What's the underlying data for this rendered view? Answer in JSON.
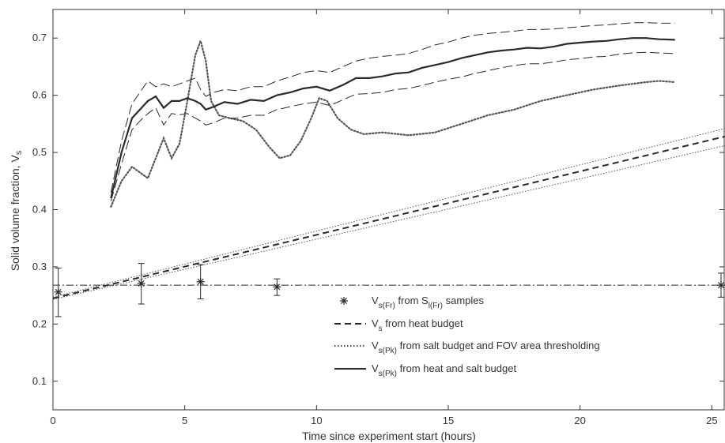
{
  "chart_data": {
    "type": "line",
    "xlabel": "Time since experiment start (hours)",
    "ylabel": "Solid volume fraction, V",
    "ylabel_sub": "s",
    "xlim": [
      0,
      25.5
    ],
    "ylim": [
      0.05,
      0.75
    ],
    "x_ticks": [
      0,
      5,
      10,
      15,
      20,
      25
    ],
    "y_ticks": [
      0.1,
      0.2,
      0.3,
      0.4,
      0.5,
      0.6,
      0.7
    ],
    "grid": false,
    "legend_position": "lower-right",
    "horizontal_line": {
      "y": 0.268,
      "style": "dash-dot"
    },
    "series": [
      {
        "key": "fr_samples",
        "kind": "scatter-errorbar",
        "marker": "asterisk",
        "points": [
          {
            "x": 0.2,
            "y": 0.256,
            "lo": 0.213,
            "hi": 0.298
          },
          {
            "x": 3.35,
            "y": 0.271,
            "lo": 0.235,
            "hi": 0.306
          },
          {
            "x": 5.6,
            "y": 0.274,
            "lo": 0.244,
            "hi": 0.304
          },
          {
            "x": 8.5,
            "y": 0.265,
            "lo": 0.25,
            "hi": 0.279
          },
          {
            "x": 25.35,
            "y": 0.268,
            "lo": 0.247,
            "hi": 0.289
          }
        ]
      },
      {
        "key": "heat_budget",
        "kind": "line",
        "style": "dashed",
        "x": [
          0,
          25.5
        ],
        "y": [
          0.245,
          0.528
        ],
        "envelope_upper": [
          0.247,
          0.542
        ],
        "envelope_lower": [
          0.243,
          0.512
        ]
      },
      {
        "key": "salt_fov",
        "kind": "line",
        "style": "dotted",
        "x": [
          2.2,
          2.6,
          3.0,
          3.3,
          3.6,
          3.9,
          4.2,
          4.5,
          4.8,
          5.1,
          5.4,
          5.6,
          5.8,
          6.0,
          6.3,
          6.7,
          7.2,
          7.7,
          8.2,
          8.6,
          9.0,
          9.4,
          9.8,
          10.1,
          10.4,
          10.8,
          11.3,
          11.8,
          12.5,
          13.5,
          14.5,
          15.5,
          16.5,
          17.5,
          18.5,
          19.5,
          20.5,
          21.5,
          22.5,
          23.0,
          23.6
        ],
        "y": [
          0.405,
          0.45,
          0.475,
          0.465,
          0.455,
          0.49,
          0.525,
          0.49,
          0.515,
          0.59,
          0.67,
          0.695,
          0.66,
          0.59,
          0.565,
          0.56,
          0.555,
          0.54,
          0.51,
          0.49,
          0.495,
          0.52,
          0.56,
          0.595,
          0.59,
          0.56,
          0.54,
          0.532,
          0.535,
          0.53,
          0.535,
          0.55,
          0.565,
          0.575,
          0.59,
          0.6,
          0.61,
          0.617,
          0.623,
          0.625,
          0.623
        ]
      },
      {
        "key": "heat_salt",
        "kind": "line",
        "style": "solid",
        "x": [
          2.2,
          2.6,
          3.0,
          3.3,
          3.6,
          3.9,
          4.2,
          4.5,
          4.8,
          5.1,
          5.4,
          5.6,
          5.8,
          6.1,
          6.5,
          7.0,
          7.5,
          8.0,
          8.5,
          9.0,
          9.5,
          10.0,
          10.5,
          11.0,
          11.5,
          12.0,
          12.5,
          13.0,
          13.5,
          14.0,
          14.5,
          15.0,
          15.5,
          16.0,
          16.5,
          17.0,
          17.5,
          18.0,
          18.5,
          19.0,
          19.5,
          20.0,
          20.5,
          21.0,
          21.5,
          22.0,
          22.5,
          23.0,
          23.6
        ],
        "y": [
          0.42,
          0.5,
          0.56,
          0.575,
          0.59,
          0.598,
          0.578,
          0.59,
          0.59,
          0.595,
          0.59,
          0.585,
          0.575,
          0.58,
          0.588,
          0.585,
          0.592,
          0.59,
          0.6,
          0.605,
          0.612,
          0.615,
          0.608,
          0.618,
          0.63,
          0.63,
          0.633,
          0.638,
          0.64,
          0.648,
          0.653,
          0.658,
          0.665,
          0.67,
          0.675,
          0.678,
          0.68,
          0.683,
          0.682,
          0.685,
          0.69,
          0.692,
          0.694,
          0.695,
          0.698,
          0.7,
          0.7,
          0.698,
          0.697
        ],
        "envelope_upper": [
          0.43,
          0.52,
          0.585,
          0.605,
          0.625,
          0.615,
          0.62,
          0.615,
          0.62,
          0.625,
          0.63,
          0.61,
          0.598,
          0.605,
          0.61,
          0.608,
          0.615,
          0.615,
          0.625,
          0.632,
          0.64,
          0.643,
          0.64,
          0.65,
          0.66,
          0.665,
          0.668,
          0.67,
          0.673,
          0.68,
          0.688,
          0.693,
          0.7,
          0.705,
          0.708,
          0.71,
          0.712,
          0.715,
          0.715,
          0.716,
          0.718,
          0.72,
          0.722,
          0.723,
          0.725,
          0.727,
          0.727,
          0.726,
          0.726
        ],
        "envelope_lower": [
          0.415,
          0.48,
          0.54,
          0.555,
          0.568,
          0.578,
          0.548,
          0.568,
          0.566,
          0.568,
          0.56,
          0.555,
          0.548,
          0.552,
          0.56,
          0.56,
          0.565,
          0.565,
          0.575,
          0.58,
          0.585,
          0.588,
          0.582,
          0.592,
          0.602,
          0.603,
          0.605,
          0.61,
          0.612,
          0.617,
          0.623,
          0.628,
          0.632,
          0.638,
          0.643,
          0.648,
          0.652,
          0.655,
          0.655,
          0.658,
          0.662,
          0.664,
          0.667,
          0.668,
          0.672,
          0.674,
          0.675,
          0.674,
          0.673
        ]
      }
    ],
    "legend": [
      {
        "key": "fr_samples",
        "parts": [
          [
            "V",
            ""
          ],
          [
            "s(Fr)",
            "sub"
          ],
          [
            " from ",
            ""
          ],
          [
            "S",
            ""
          ],
          [
            "l(Fr)",
            "sub"
          ],
          [
            " samples",
            ""
          ]
        ]
      },
      {
        "key": "heat_budget",
        "parts": [
          [
            "V",
            ""
          ],
          [
            "s",
            "sub"
          ],
          [
            " from heat budget",
            ""
          ]
        ]
      },
      {
        "key": "salt_fov",
        "parts": [
          [
            "V",
            ""
          ],
          [
            "s(Pk)",
            "sub"
          ],
          [
            " from salt budget and FOV area thresholding",
            ""
          ]
        ]
      },
      {
        "key": "heat_salt",
        "parts": [
          [
            "V",
            ""
          ],
          [
            "s(Pk)",
            "sub"
          ],
          [
            " from heat and salt budget",
            ""
          ]
        ]
      }
    ],
    "colors": {
      "line": "#2a2a2a",
      "dotted": "#555555",
      "axis": "#333333"
    }
  }
}
